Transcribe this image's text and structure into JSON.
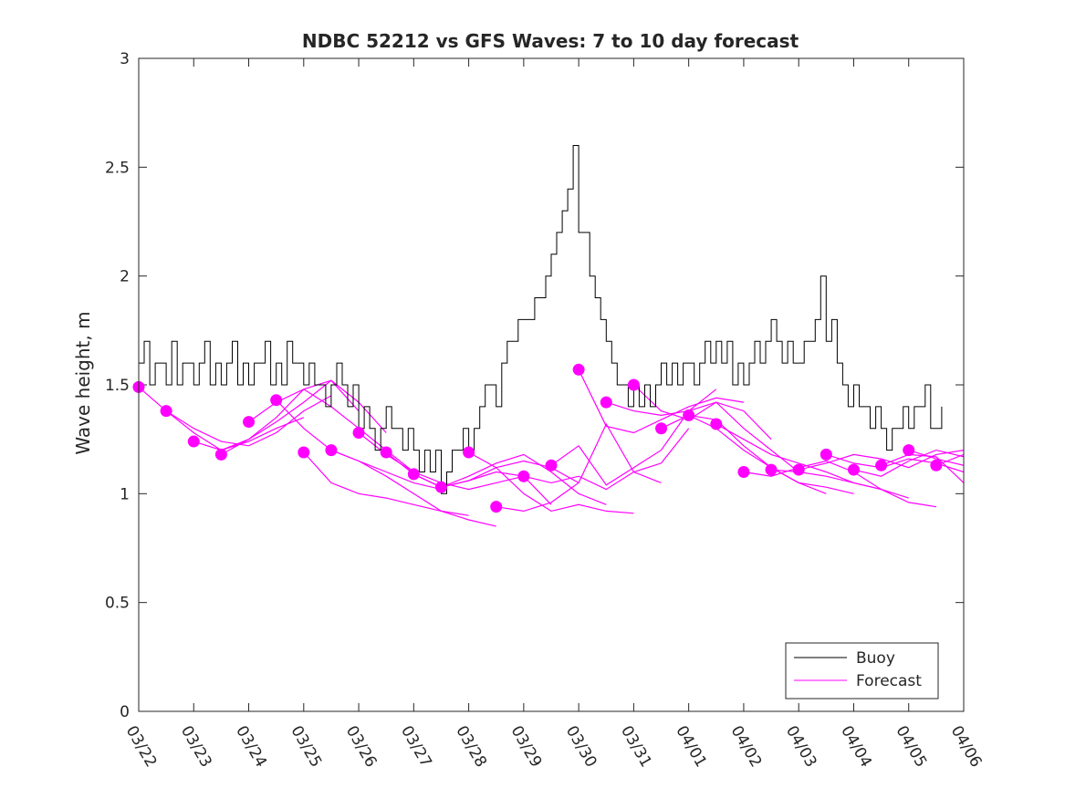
{
  "chart_data": {
    "type": "line",
    "title": "NDBC 52212 vs GFS Waves: 7 to 10 day forecast",
    "xlabel": "",
    "ylabel": "Wave height, m",
    "xlim": [
      0,
      15
    ],
    "ylim": [
      0,
      3
    ],
    "x_unit": "days since 03/22",
    "xticks": [
      0,
      1,
      2,
      3,
      4,
      5,
      6,
      7,
      8,
      9,
      10,
      11,
      12,
      13,
      14,
      15
    ],
    "xtick_labels": [
      "03/22",
      "03/23",
      "03/24",
      "03/25",
      "03/26",
      "03/27",
      "03/28",
      "03/29",
      "03/30",
      "03/31",
      "04/01",
      "04/02",
      "04/03",
      "04/04",
      "04/05",
      "04/06"
    ],
    "yticks": [
      0,
      0.5,
      1,
      1.5,
      2,
      2.5,
      3
    ],
    "ytick_labels": [
      "0",
      "0.5",
      "1",
      "1.5",
      "2",
      "2.5",
      "3"
    ],
    "legend": {
      "location": "bottom-right",
      "entries": [
        {
          "label": "Buoy",
          "color": "#000000"
        },
        {
          "label": "Forecast",
          "color": "#ff00ff"
        }
      ]
    },
    "buoy": {
      "name": "Buoy",
      "color": "#000000",
      "x": [
        0.0,
        0.1,
        0.2,
        0.3,
        0.4,
        0.5,
        0.6,
        0.7,
        0.8,
        0.9,
        1.0,
        1.1,
        1.2,
        1.3,
        1.4,
        1.5,
        1.6,
        1.7,
        1.8,
        1.9,
        2.0,
        2.1,
        2.2,
        2.3,
        2.4,
        2.5,
        2.6,
        2.7,
        2.8,
        2.9,
        3.0,
        3.1,
        3.2,
        3.3,
        3.4,
        3.5,
        3.6,
        3.7,
        3.8,
        3.9,
        4.0,
        4.1,
        4.2,
        4.3,
        4.4,
        4.5,
        4.6,
        4.7,
        4.8,
        4.9,
        5.0,
        5.1,
        5.2,
        5.3,
        5.4,
        5.5,
        5.6,
        5.7,
        5.8,
        5.9,
        6.0,
        6.1,
        6.2,
        6.3,
        6.4,
        6.5,
        6.6,
        6.7,
        6.8,
        6.9,
        7.0,
        7.1,
        7.2,
        7.3,
        7.4,
        7.5,
        7.6,
        7.7,
        7.8,
        7.9,
        8.0,
        8.1,
        8.2,
        8.3,
        8.4,
        8.5,
        8.6,
        8.7,
        8.8,
        8.9,
        9.0,
        9.1,
        9.2,
        9.3,
        9.4,
        9.5,
        9.6,
        9.7,
        9.8,
        9.9,
        10.0,
        10.1,
        10.2,
        10.3,
        10.4,
        10.5,
        10.6,
        10.7,
        10.8,
        10.9,
        11.0,
        11.1,
        11.2,
        11.3,
        11.4,
        11.5,
        11.6,
        11.7,
        11.8,
        11.9,
        12.0,
        12.1,
        12.2,
        12.3,
        12.4,
        12.5,
        12.6,
        12.7,
        12.8,
        12.9,
        13.0,
        13.1,
        13.2,
        13.3,
        13.4,
        13.5,
        13.6,
        13.7,
        13.8,
        13.9,
        14.0,
        14.1,
        14.2,
        14.3,
        14.4,
        14.5,
        14.6
      ],
      "values": [
        1.6,
        1.7,
        1.5,
        1.6,
        1.6,
        1.5,
        1.7,
        1.5,
        1.6,
        1.6,
        1.5,
        1.6,
        1.7,
        1.5,
        1.6,
        1.5,
        1.6,
        1.7,
        1.5,
        1.6,
        1.5,
        1.6,
        1.6,
        1.7,
        1.5,
        1.6,
        1.5,
        1.7,
        1.6,
        1.6,
        1.5,
        1.6,
        1.5,
        1.5,
        1.4,
        1.5,
        1.6,
        1.5,
        1.4,
        1.5,
        1.3,
        1.4,
        1.3,
        1.2,
        1.3,
        1.4,
        1.3,
        1.3,
        1.2,
        1.3,
        1.2,
        1.1,
        1.2,
        1.1,
        1.2,
        1.0,
        1.1,
        1.2,
        1.2,
        1.3,
        1.2,
        1.3,
        1.4,
        1.5,
        1.5,
        1.4,
        1.6,
        1.7,
        1.7,
        1.8,
        1.8,
        1.8,
        1.9,
        1.9,
        2.0,
        2.1,
        2.2,
        2.3,
        2.4,
        2.6,
        2.2,
        2.2,
        2.0,
        1.9,
        1.8,
        1.7,
        1.6,
        1.5,
        1.5,
        1.4,
        1.5,
        1.4,
        1.5,
        1.4,
        1.5,
        1.6,
        1.5,
        1.6,
        1.5,
        1.6,
        1.6,
        1.5,
        1.6,
        1.7,
        1.6,
        1.7,
        1.6,
        1.7,
        1.5,
        1.6,
        1.5,
        1.6,
        1.7,
        1.6,
        1.7,
        1.8,
        1.7,
        1.6,
        1.7,
        1.6,
        1.6,
        1.7,
        1.7,
        1.8,
        2.0,
        1.7,
        1.8,
        1.6,
        1.5,
        1.4,
        1.5,
        1.4,
        1.4,
        1.3,
        1.4,
        1.3,
        1.2,
        1.3,
        1.3,
        1.4,
        1.3,
        1.4,
        1.4,
        1.5,
        1.3,
        1.3,
        1.4
      ]
    },
    "forecast": {
      "name": "Forecast",
      "color": "#ff00ff",
      "runs": [
        {
          "x": [
            0.0,
            0.5,
            1.0,
            1.5,
            2.0,
            2.5,
            3.0
          ],
          "values": [
            1.49,
            1.38,
            1.28,
            1.2,
            1.24,
            1.3,
            1.35
          ]
        },
        {
          "x": [
            0.5,
            1.0,
            1.5,
            2.0,
            2.5,
            3.0,
            3.5
          ],
          "values": [
            1.38,
            1.3,
            1.24,
            1.22,
            1.28,
            1.38,
            1.45
          ]
        },
        {
          "x": [
            1.0,
            1.5,
            2.0,
            2.5,
            3.0,
            3.5,
            4.0
          ],
          "values": [
            1.24,
            1.2,
            1.25,
            1.35,
            1.48,
            1.52,
            1.38
          ]
        },
        {
          "x": [
            1.5,
            2.0,
            2.5,
            3.0,
            3.5,
            4.0,
            4.5
          ],
          "values": [
            1.18,
            1.25,
            1.33,
            1.42,
            1.52,
            1.42,
            1.28
          ]
        },
        {
          "x": [
            2.0,
            2.5,
            3.0,
            3.5,
            4.0,
            4.5,
            5.0
          ],
          "values": [
            1.33,
            1.42,
            1.48,
            1.4,
            1.3,
            1.2,
            1.1
          ]
        },
        {
          "x": [
            2.5,
            3.0,
            3.5,
            4.0,
            4.5,
            5.0,
            5.5
          ],
          "values": [
            1.43,
            1.3,
            1.2,
            1.15,
            1.1,
            1.05,
            1.02
          ]
        },
        {
          "x": [
            3.0,
            3.5,
            4.0,
            4.5,
            5.0,
            5.5,
            6.0
          ],
          "values": [
            1.19,
            1.05,
            1.0,
            0.98,
            0.95,
            0.92,
            0.9
          ]
        },
        {
          "x": [
            3.5,
            4.0,
            4.5,
            5.0,
            5.5,
            6.0,
            6.5
          ],
          "values": [
            1.2,
            1.15,
            1.08,
            1.0,
            0.92,
            0.88,
            0.85
          ]
        },
        {
          "x": [
            4.0,
            4.5,
            5.0,
            5.5,
            6.0,
            6.5,
            7.0
          ],
          "values": [
            1.28,
            1.18,
            1.1,
            1.05,
            1.02,
            1.05,
            1.08
          ]
        },
        {
          "x": [
            4.5,
            5.0,
            5.5,
            6.0,
            6.5,
            7.0,
            7.5
          ],
          "values": [
            1.19,
            1.09,
            1.03,
            1.06,
            1.1,
            1.08,
            0.95
          ]
        },
        {
          "x": [
            5.0,
            5.5,
            6.0,
            6.5,
            7.0,
            7.5,
            8.0
          ],
          "values": [
            1.09,
            1.03,
            1.06,
            1.12,
            1.15,
            1.12,
            1.05
          ]
        },
        {
          "x": [
            5.5,
            6.0,
            6.5,
            7.0,
            7.5,
            8.0,
            8.5
          ],
          "values": [
            1.03,
            1.08,
            1.14,
            1.18,
            1.1,
            1.0,
            0.95
          ]
        },
        {
          "x": [
            6.0,
            6.5,
            7.0,
            7.5,
            8.0,
            8.5,
            9.0
          ],
          "values": [
            1.19,
            1.12,
            1.0,
            0.92,
            0.95,
            0.92,
            0.91
          ]
        },
        {
          "x": [
            6.5,
            7.0,
            7.5,
            8.0,
            8.5,
            9.0,
            9.5
          ],
          "values": [
            0.94,
            0.92,
            0.96,
            1.05,
            1.32,
            1.1,
            1.05
          ]
        },
        {
          "x": [
            7.0,
            7.5,
            8.0,
            8.5,
            9.0,
            9.5,
            10.0
          ],
          "values": [
            1.08,
            1.05,
            1.08,
            1.02,
            1.1,
            1.14,
            1.3
          ]
        },
        {
          "x": [
            7.5,
            8.0,
            8.5,
            9.0,
            9.5,
            10.0,
            10.5
          ],
          "values": [
            1.13,
            1.22,
            1.04,
            1.12,
            1.2,
            1.38,
            1.48
          ]
        },
        {
          "x": [
            8.0,
            8.5,
            9.0,
            9.5,
            10.0,
            10.5,
            11.0
          ],
          "values": [
            1.57,
            1.31,
            1.28,
            1.34,
            1.4,
            1.44,
            1.42
          ]
        },
        {
          "x": [
            8.5,
            9.0,
            9.5,
            10.0,
            10.5,
            11.0,
            11.5
          ],
          "values": [
            1.42,
            1.38,
            1.36,
            1.38,
            1.42,
            1.38,
            1.25
          ]
        },
        {
          "x": [
            9.0,
            9.5,
            10.0,
            10.5,
            11.0,
            11.5,
            12.0
          ],
          "values": [
            1.5,
            1.38,
            1.34,
            1.42,
            1.3,
            1.2,
            1.1
          ]
        },
        {
          "x": [
            9.5,
            10.0,
            10.5,
            11.0,
            11.5,
            12.0,
            12.5
          ],
          "values": [
            1.3,
            1.36,
            1.34,
            1.22,
            1.12,
            1.05,
            1.0
          ]
        },
        {
          "x": [
            10.0,
            10.5,
            11.0,
            11.5,
            12.0,
            12.5,
            13.0
          ],
          "values": [
            1.36,
            1.3,
            1.2,
            1.12,
            1.05,
            1.03,
            1.0
          ]
        },
        {
          "x": [
            10.5,
            11.0,
            11.5,
            12.0,
            12.5,
            13.0,
            13.5
          ],
          "values": [
            1.32,
            1.25,
            1.18,
            1.14,
            1.1,
            1.05,
            1.02
          ]
        },
        {
          "x": [
            11.0,
            11.5,
            12.0,
            12.5,
            13.0,
            13.5,
            14.0
          ],
          "values": [
            1.1,
            1.08,
            1.12,
            1.15,
            1.1,
            1.02,
            0.98
          ]
        },
        {
          "x": [
            11.5,
            12.0,
            12.5,
            13.0,
            13.5,
            14.0,
            14.5
          ],
          "values": [
            1.11,
            1.1,
            1.08,
            1.05,
            1.02,
            0.96,
            0.94
          ]
        },
        {
          "x": [
            12.0,
            12.5,
            13.0,
            13.5,
            14.0,
            14.5,
            15.0
          ],
          "values": [
            1.11,
            1.14,
            1.18,
            1.16,
            1.12,
            1.18,
            1.2
          ]
        },
        {
          "x": [
            12.5,
            13.0,
            13.5,
            14.0,
            14.5,
            15.0
          ],
          "values": [
            1.18,
            1.14,
            1.12,
            1.16,
            1.14,
            1.1
          ]
        },
        {
          "x": [
            13.0,
            13.5,
            14.0,
            14.5,
            15.0
          ],
          "values": [
            1.11,
            1.08,
            1.15,
            1.2,
            1.17
          ]
        },
        {
          "x": [
            13.5,
            14.0,
            14.5,
            15.0
          ],
          "values": [
            1.13,
            1.18,
            1.17,
            1.05
          ]
        },
        {
          "x": [
            14.0,
            14.5,
            15.0
          ],
          "values": [
            1.2,
            1.16,
            1.13
          ]
        },
        {
          "x": [
            14.5,
            15.0
          ],
          "values": [
            1.13,
            1.18
          ]
        }
      ],
      "marker_points": [
        {
          "x": 0.0,
          "y": 1.49
        },
        {
          "x": 0.5,
          "y": 1.38
        },
        {
          "x": 1.0,
          "y": 1.24
        },
        {
          "x": 1.5,
          "y": 1.18
        },
        {
          "x": 2.0,
          "y": 1.33
        },
        {
          "x": 2.5,
          "y": 1.43
        },
        {
          "x": 3.0,
          "y": 1.19
        },
        {
          "x": 3.5,
          "y": 1.2
        },
        {
          "x": 4.0,
          "y": 1.28
        },
        {
          "x": 4.5,
          "y": 1.19
        },
        {
          "x": 5.0,
          "y": 1.09
        },
        {
          "x": 5.5,
          "y": 1.03
        },
        {
          "x": 6.0,
          "y": 1.19
        },
        {
          "x": 6.5,
          "y": 0.94
        },
        {
          "x": 7.0,
          "y": 1.08
        },
        {
          "x": 7.5,
          "y": 1.13
        },
        {
          "x": 8.0,
          "y": 1.57
        },
        {
          "x": 8.5,
          "y": 1.42
        },
        {
          "x": 9.0,
          "y": 1.5
        },
        {
          "x": 9.5,
          "y": 1.3
        },
        {
          "x": 10.0,
          "y": 1.36
        },
        {
          "x": 10.5,
          "y": 1.32
        },
        {
          "x": 11.0,
          "y": 1.1
        },
        {
          "x": 11.5,
          "y": 1.11
        },
        {
          "x": 12.0,
          "y": 1.11
        },
        {
          "x": 12.5,
          "y": 1.18
        },
        {
          "x": 13.0,
          "y": 1.11
        },
        {
          "x": 13.5,
          "y": 1.13
        },
        {
          "x": 14.0,
          "y": 1.2
        },
        {
          "x": 14.5,
          "y": 1.13
        }
      ]
    }
  }
}
